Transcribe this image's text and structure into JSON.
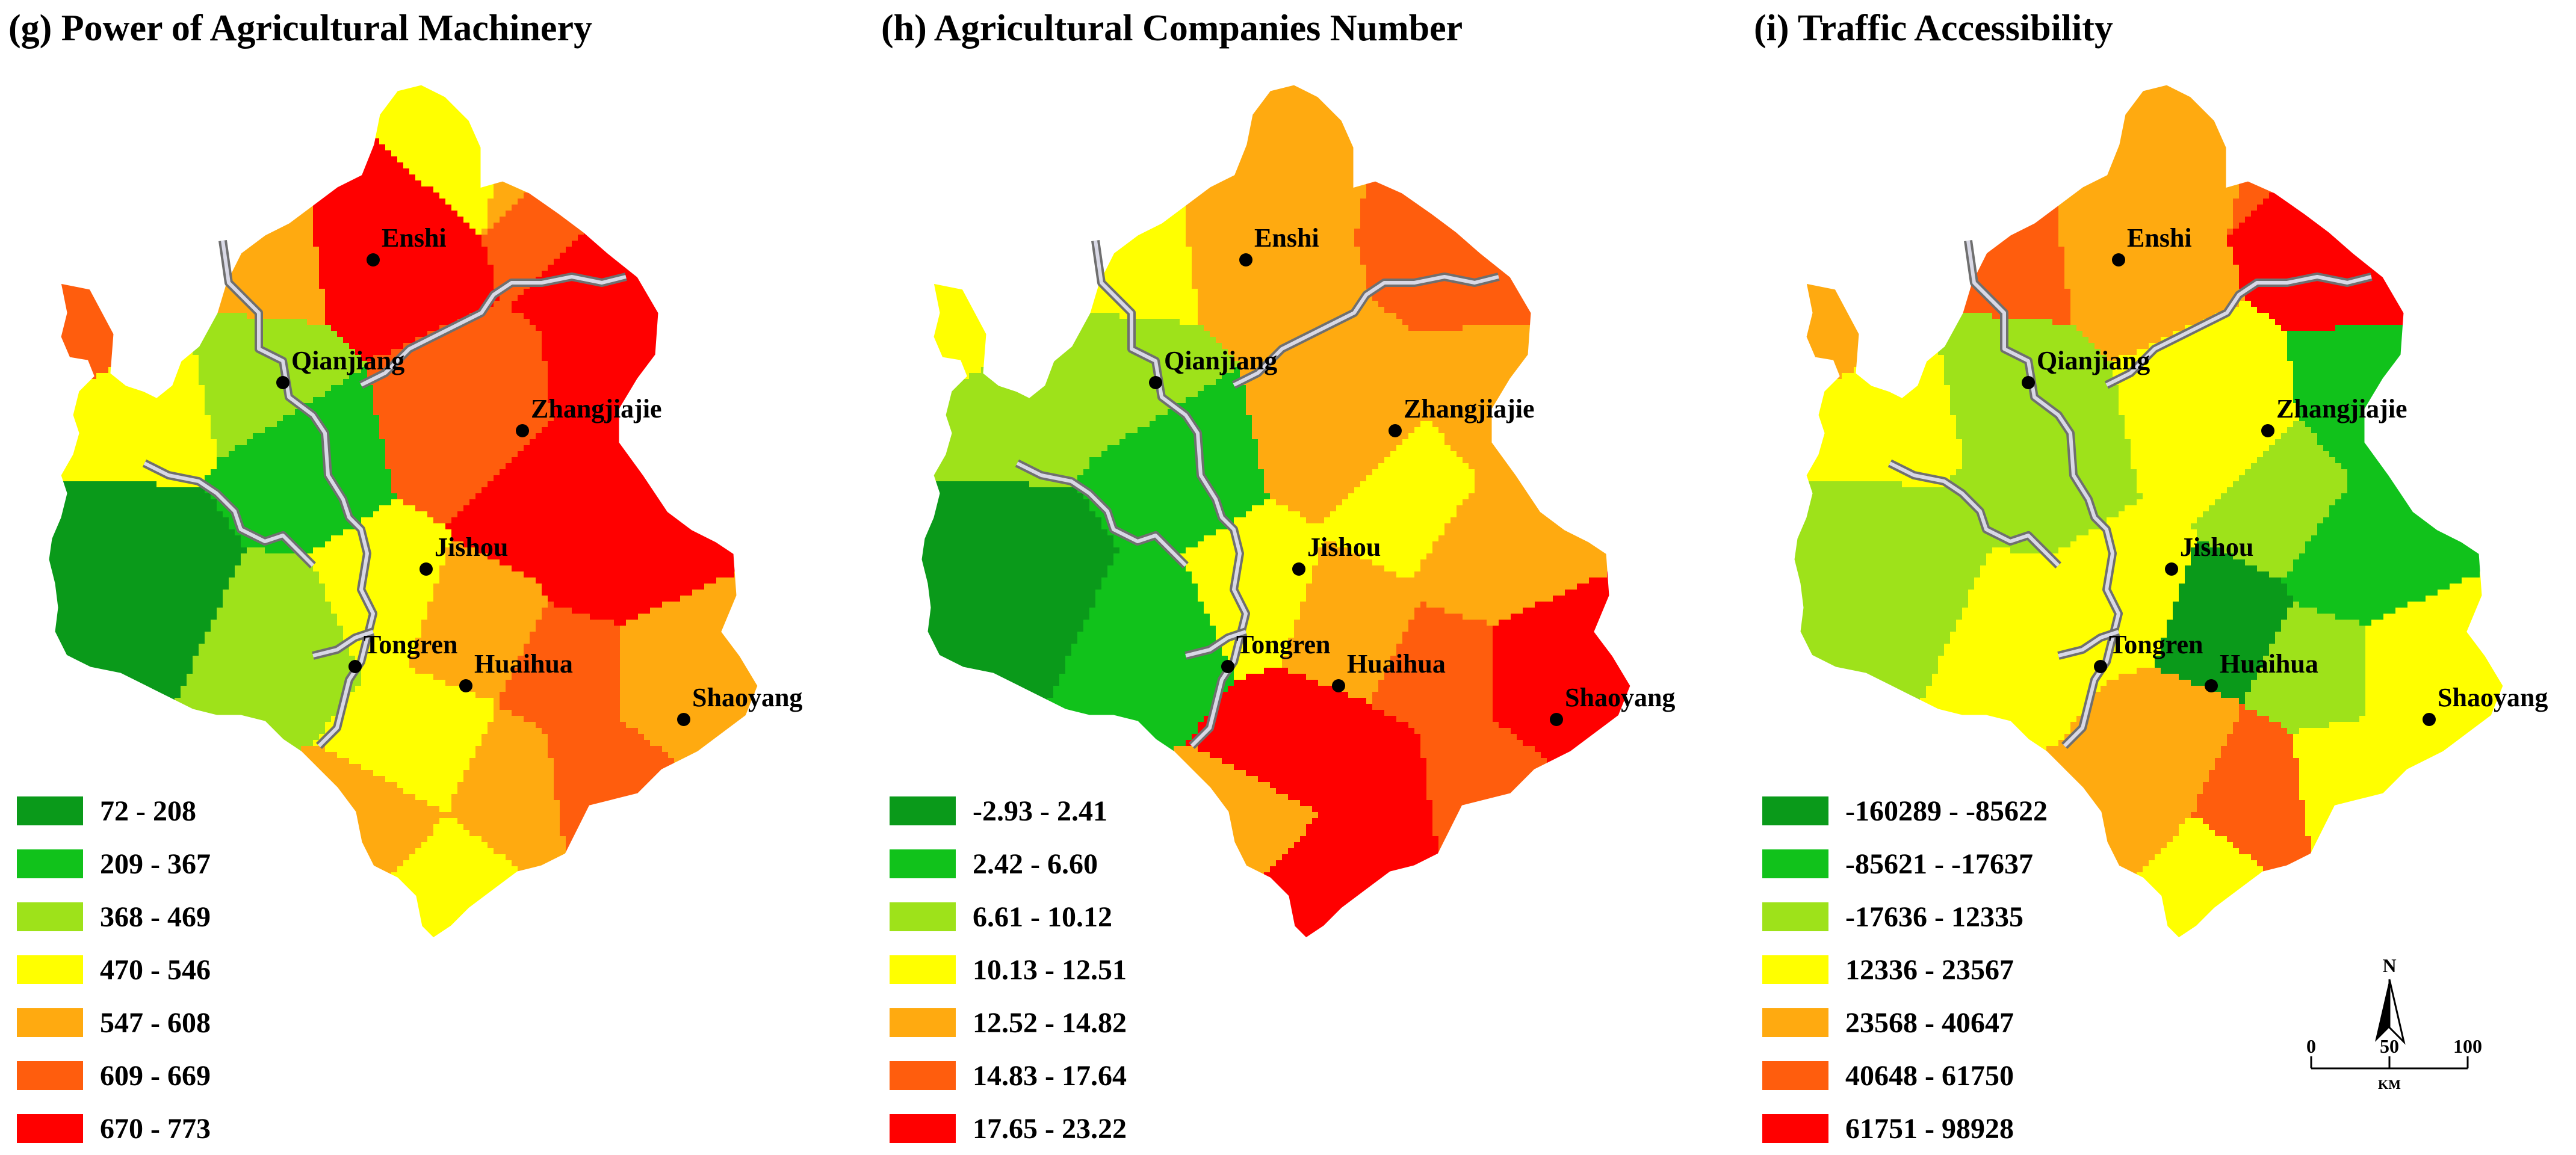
{
  "colors": [
    "#0a9a1a",
    "#11c21b",
    "#9ee21a",
    "#ffff00",
    "#ffaa10",
    "#ff5d0d",
    "#ff0000"
  ],
  "panels": [
    {
      "title": "(g) Power of Agricultural Machinery",
      "legend": [
        "72 - 208",
        "209 - 367",
        "368 - 469",
        "470 - 546",
        "547 - 608",
        "609 - 669",
        "670 - 773"
      ],
      "region_classes": [
        3,
        4,
        5,
        6,
        4,
        6,
        5,
        3,
        2,
        1,
        0,
        2,
        3,
        5,
        6,
        4,
        6,
        5,
        4,
        3,
        4,
        5,
        4,
        3,
        6
      ]
    },
    {
      "title": "(h) Agricultural Companies Number",
      "legend": [
        "-2.93 - 2.41",
        "2.42 - 6.60",
        "6.61 - 10.12",
        "10.13 - 12.51",
        "12.52 - 14.82",
        "14.83 - 17.64",
        "17.65 - 23.22"
      ],
      "region_classes": [
        4,
        5,
        5,
        5,
        3,
        4,
        3,
        2,
        2,
        1,
        0,
        1,
        3,
        4,
        3,
        4,
        4,
        5,
        6,
        6,
        6,
        5,
        4,
        6,
        4
      ]
    },
    {
      "title": "(i) Traffic Accessibility",
      "legend": [
        "-160289 - -85622",
        "-85621 - -17637",
        "-17636 - 12335",
        "12336 - 23567",
        "23568 - 40647",
        "40648 - 61750",
        "61751 - 98928"
      ],
      "region_classes": [
        4,
        5,
        6,
        6,
        5,
        4,
        4,
        3,
        2,
        2,
        2,
        3,
        3,
        3,
        2,
        0,
        1,
        2,
        3,
        4,
        5,
        3,
        4,
        3,
        1
      ]
    }
  ],
  "cities": [
    "Enshi",
    "Qianjiang",
    "Zhangjiajie",
    "Jishou",
    "Tongren",
    "Huaihua",
    "Shaoyang"
  ],
  "scale_bar": {
    "north": "N",
    "ticks": [
      "0",
      "50",
      "100"
    ],
    "unit": "KM"
  }
}
